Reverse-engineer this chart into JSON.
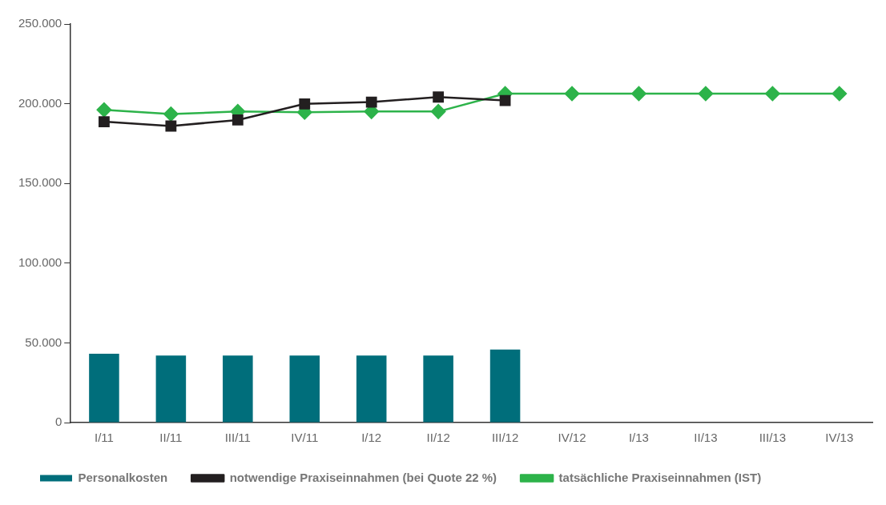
{
  "chart_data": {
    "type": "bar",
    "categories": [
      "I/11",
      "II/11",
      "III/11",
      "IV/11",
      "I/12",
      "II/12",
      "III/12",
      "IV/12",
      "I/13",
      "II/13",
      "III/13",
      "IV/13"
    ],
    "series": [
      {
        "name": "Personalkosten",
        "color": "#006e7b",
        "values": [
          43200,
          42100,
          42100,
          42100,
          42100,
          42100,
          45800,
          null,
          null,
          null,
          null,
          null
        ]
      },
      {
        "name": "notwendige Praxiseinnahmen (bei Quote 22 %)",
        "type": "line",
        "color": "#231f20",
        "marker": "square",
        "values": [
          188700,
          186000,
          189800,
          199900,
          201000,
          204200,
          202000,
          null,
          null,
          null,
          null,
          null
        ]
      },
      {
        "name": "tatsächliche Praxiseinnahmen (IST)",
        "type": "line",
        "color": "#2db34a",
        "marker": "diamond",
        "values": [
          196200,
          193500,
          195100,
          194600,
          195100,
          195100,
          206300,
          206300,
          206300,
          206300,
          206300,
          206300
        ]
      }
    ],
    "ylim": [
      0,
      250000
    ],
    "yticks": [
      0,
      {
        "value": 50000,
        "label": "50.000"
      },
      {
        "value": 100000,
        "label": "100.000"
      },
      {
        "value": 150000,
        "label": "150.000"
      },
      {
        "value": 200000,
        "label": "200.000"
      },
      {
        "value": 250000,
        "label": "250.000"
      }
    ],
    "grid": false,
    "legend": "bottom"
  }
}
